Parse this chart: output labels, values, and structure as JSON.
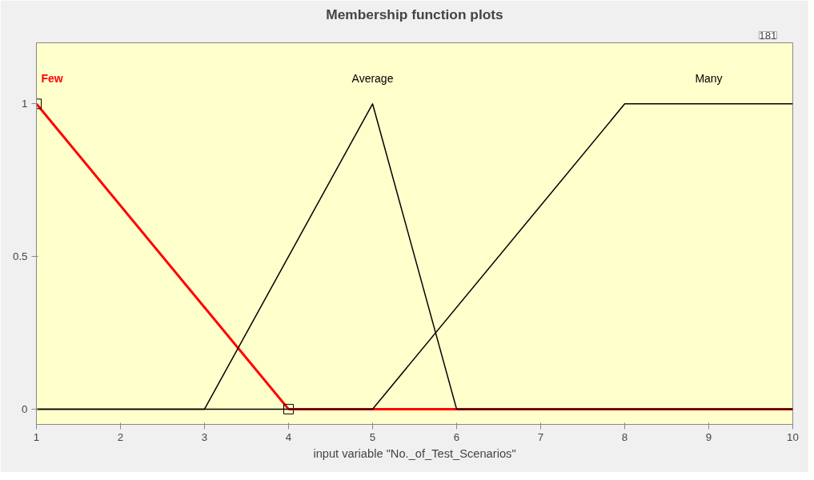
{
  "chart_data": {
    "type": "line",
    "title": "Membership function plots",
    "xlabel": "input variable \"No._of_Test_Scenarios\"",
    "xlim": [
      1,
      10
    ],
    "xticks": [
      1,
      2,
      3,
      4,
      5,
      6,
      7,
      8,
      9,
      10
    ],
    "ylim": [
      -0.05,
      1.2
    ],
    "yticks": [
      0,
      0.5,
      1
    ],
    "grid": false,
    "annotations": [
      "181"
    ],
    "series": [
      {
        "name": "Few",
        "color": "#ff0000",
        "x": [
          1,
          4
        ],
        "values": [
          1,
          0
        ],
        "marker": "square"
      },
      {
        "color": "#ff0000",
        "x": [
          4,
          10
        ],
        "values": [
          0,
          0
        ]
      },
      {
        "name": "Average",
        "color": "#000000",
        "x": [
          1,
          3,
          5,
          6,
          10
        ],
        "values": [
          0,
          0,
          1,
          0,
          0
        ]
      },
      {
        "name": "Many",
        "color": "#000000",
        "x": [
          1,
          5,
          8,
          10
        ],
        "values": [
          0,
          0,
          1,
          1
        ]
      }
    ]
  }
}
